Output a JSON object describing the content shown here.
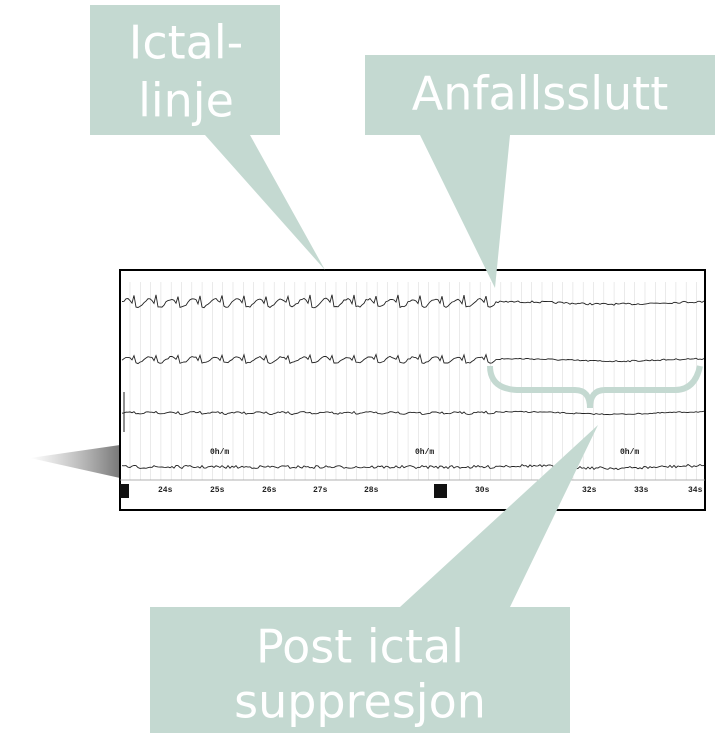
{
  "callouts": {
    "ictal_line": [
      "Ictal-",
      "linje"
    ],
    "seizure_end": "Anfallsslutt",
    "postictal": [
      "Post ictal",
      "suppresjon"
    ]
  },
  "eeg": {
    "speed_labels": [
      "0h/m",
      "0h/m",
      "0h/m"
    ],
    "time_labels": [
      "24s",
      "25s",
      "26s",
      "27s",
      "28s",
      "30s",
      "32s",
      "33s",
      "34s"
    ]
  }
}
